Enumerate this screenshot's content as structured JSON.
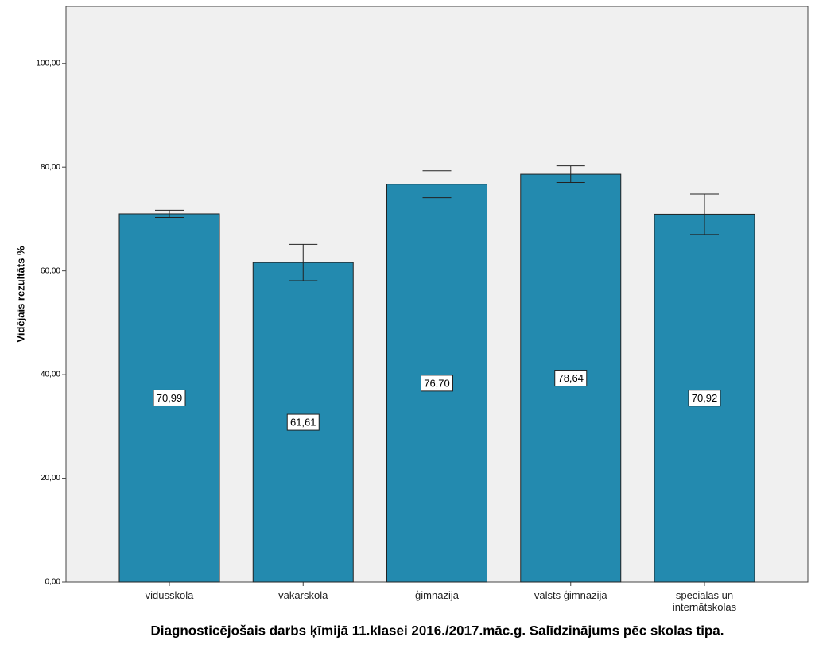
{
  "chart_data": {
    "type": "bar",
    "title": "Diagnosticējošais darbs ķīmijā 11.klasei 2016./2017.māc.g. Salīdzinājums pēc skolas tipa.",
    "y_label": "Vidējais rezultāts %",
    "categories": [
      "vidusskola",
      "vakarskola",
      "ģimnāzija",
      "valsts ģimnāzija",
      "speciālās un internātskolas"
    ],
    "values": [
      70.99,
      61.61,
      76.7,
      78.64,
      70.92
    ],
    "value_labels": [
      "70,99",
      "61,61",
      "76,70",
      "78,64",
      "70,92"
    ],
    "errors": [
      0.7,
      3.5,
      2.6,
      1.6,
      3.9
    ],
    "color": "#238aaf",
    "ylim": [
      0,
      111
    ],
    "yticks": [
      {
        "value": 0,
        "label": "0,00"
      },
      {
        "value": 20,
        "label": "20,00"
      },
      {
        "value": 40,
        "label": "40,00"
      },
      {
        "value": 60,
        "label": "60,00"
      },
      {
        "value": 80,
        "label": "80,00"
      },
      {
        "value": 100,
        "label": "100,00"
      }
    ],
    "grid": false
  }
}
